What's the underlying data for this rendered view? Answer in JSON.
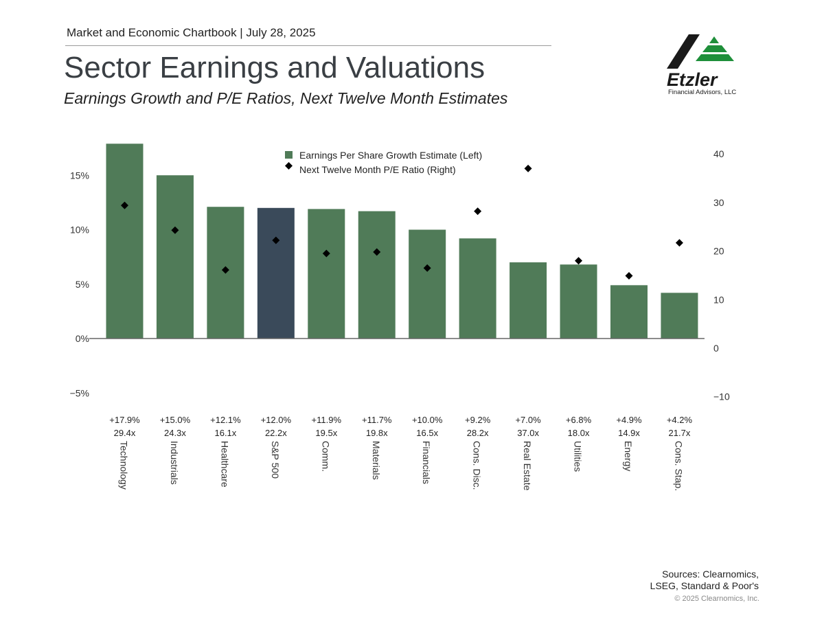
{
  "header": {
    "chartbook_line": "Market and Economic Chartbook | July 28, 2025",
    "title": "Sector Earnings and Valuations",
    "subtitle": "Earnings Growth and P/E Ratios, Next Twelve Month Estimates"
  },
  "logo": {
    "name": "Etzler",
    "tagline": "Financial Advisors, LLC"
  },
  "colors": {
    "bar": "#507b58",
    "highlight_bar": "#3a4a5a",
    "marker": "#000000"
  },
  "chart_data": {
    "type": "bar",
    "categories": [
      "Technology",
      "Industrials",
      "Healthcare",
      "S&P 500",
      "Comm.",
      "Materials",
      "Financials",
      "Cons. Disc.",
      "Real Estate",
      "Utilities",
      "Energy",
      "Cons. Stap."
    ],
    "series": [
      {
        "name": "Earnings Per Share Growth Estimate (Left)",
        "type": "bar",
        "axis": "left",
        "values": [
          17.9,
          15.0,
          12.1,
          12.0,
          11.9,
          11.7,
          10.0,
          9.2,
          7.0,
          6.8,
          4.9,
          4.2
        ]
      },
      {
        "name": "Next Twelve Month P/E Ratio (Right)",
        "type": "scatter",
        "axis": "right",
        "values": [
          29.4,
          24.3,
          16.1,
          22.2,
          19.5,
          19.8,
          16.5,
          28.2,
          37.0,
          18.0,
          14.9,
          21.7
        ]
      }
    ],
    "highlight_category": "S&P 500",
    "growth_labels": [
      "+17.9%",
      "+15.0%",
      "+12.1%",
      "+12.0%",
      "+11.9%",
      "+11.7%",
      "+10.0%",
      "+9.2%",
      "+7.0%",
      "+6.8%",
      "+4.9%",
      "+4.2%"
    ],
    "pe_labels": [
      "29.4x",
      "24.3x",
      "16.1x",
      "22.2x",
      "19.5x",
      "19.8x",
      "16.5x",
      "28.2x",
      "37.0x",
      "18.0x",
      "14.9x",
      "21.7x"
    ],
    "left_axis": {
      "ticks": [
        "15%",
        "10%",
        "5%",
        "0%",
        "−5%"
      ],
      "tick_values": [
        15,
        10,
        5,
        0,
        -5
      ],
      "range": [
        -5,
        18
      ]
    },
    "right_axis": {
      "ticks": [
        "40",
        "30",
        "20",
        "10",
        "0",
        "−10"
      ],
      "tick_values": [
        40,
        30,
        20,
        10,
        0,
        -10
      ],
      "range": [
        -10,
        40
      ]
    },
    "legend_position": "top-center",
    "grid": false
  },
  "footer": {
    "sources_line1": "Sources: Clearnomics,",
    "sources_line2": "LSEG, Standard & Poor's",
    "copyright": "© 2025 Clearnomics, Inc."
  }
}
